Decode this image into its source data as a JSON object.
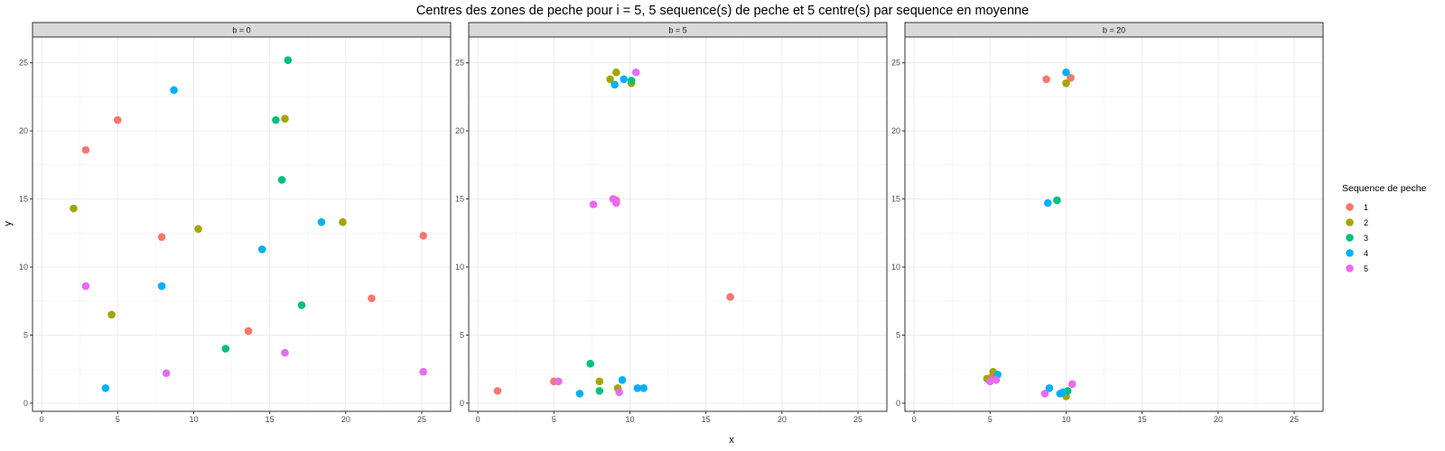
{
  "chart_data": {
    "type": "scatter",
    "title": "Centres des zones de peche pour i = 5, 5 sequence(s) de peche et 5 centre(s) par sequence en moyenne",
    "xlabel": "x",
    "ylabel": "y",
    "xlim": [
      -0.6,
      26.9
    ],
    "ylim": [
      -0.6,
      26.9
    ],
    "x_ticks": [
      0,
      5,
      10,
      15,
      20,
      25
    ],
    "y_ticks": [
      0,
      5,
      10,
      15,
      20,
      25
    ],
    "grid": true,
    "legend": {
      "title": "Sequence de peche",
      "position": "right",
      "entries": [
        {
          "label": "1",
          "color": "#F8766D"
        },
        {
          "label": "2",
          "color": "#A3A500"
        },
        {
          "label": "3",
          "color": "#00BF7D"
        },
        {
          "label": "4",
          "color": "#00B0F6"
        },
        {
          "label": "5",
          "color": "#E76BF3"
        }
      ]
    },
    "panels": [
      {
        "label": "b = 0",
        "series": [
          {
            "name": "1",
            "points": [
              [
                2.9,
                18.6
              ],
              [
                5.0,
                20.8
              ],
              [
                7.9,
                12.2
              ],
              [
                13.6,
                5.3
              ],
              [
                21.7,
                7.7
              ],
              [
                25.1,
                12.3
              ]
            ]
          },
          {
            "name": "2",
            "points": [
              [
                2.1,
                14.3
              ],
              [
                4.6,
                6.5
              ],
              [
                10.3,
                12.8
              ],
              [
                16.0,
                20.9
              ],
              [
                19.8,
                13.3
              ]
            ]
          },
          {
            "name": "3",
            "points": [
              [
                12.1,
                4.0
              ],
              [
                15.4,
                20.8
              ],
              [
                15.8,
                16.4
              ],
              [
                16.2,
                25.2
              ],
              [
                17.1,
                7.2
              ]
            ]
          },
          {
            "name": "4",
            "points": [
              [
                4.2,
                1.1
              ],
              [
                7.9,
                8.6
              ],
              [
                8.7,
                23.0
              ],
              [
                14.5,
                11.3
              ],
              [
                18.4,
                13.3
              ]
            ]
          },
          {
            "name": "5",
            "points": [
              [
                2.9,
                8.6
              ],
              [
                8.2,
                2.2
              ],
              [
                16.0,
                3.7
              ],
              [
                25.1,
                2.3
              ]
            ]
          }
        ]
      },
      {
        "label": "b = 5",
        "series": [
          {
            "name": "1",
            "points": [
              [
                1.3,
                0.9
              ],
              [
                5.0,
                1.6
              ],
              [
                9.1,
                14.9
              ],
              [
                16.6,
                7.8
              ]
            ]
          },
          {
            "name": "2",
            "points": [
              [
                8.0,
                1.6
              ],
              [
                8.7,
                23.8
              ],
              [
                9.1,
                24.3
              ],
              [
                9.2,
                1.1
              ],
              [
                10.1,
                23.5
              ]
            ]
          },
          {
            "name": "3",
            "points": [
              [
                7.4,
                2.9
              ],
              [
                8.0,
                0.9
              ],
              [
                10.1,
                23.7
              ]
            ]
          },
          {
            "name": "4",
            "points": [
              [
                6.7,
                0.7
              ],
              [
                9.0,
                23.4
              ],
              [
                9.5,
                1.7
              ],
              [
                9.6,
                23.8
              ],
              [
                10.5,
                1.1
              ],
              [
                10.9,
                1.1
              ]
            ]
          },
          {
            "name": "5",
            "points": [
              [
                5.3,
                1.6
              ],
              [
                7.6,
                14.6
              ],
              [
                8.9,
                15.0
              ],
              [
                9.1,
                14.7
              ],
              [
                9.3,
                0.8
              ],
              [
                10.4,
                24.3
              ]
            ]
          }
        ]
      },
      {
        "label": "b = 20",
        "series": [
          {
            "name": "1",
            "points": [
              [
                8.7,
                23.8
              ],
              [
                10.3,
                23.9
              ],
              [
                5.1,
                1.9
              ]
            ]
          },
          {
            "name": "2",
            "points": [
              [
                4.8,
                1.8
              ],
              [
                5.2,
                2.3
              ],
              [
                10.0,
                23.5
              ],
              [
                10.0,
                0.5
              ]
            ]
          },
          {
            "name": "3",
            "points": [
              [
                9.4,
                14.9
              ],
              [
                10.1,
                0.9
              ]
            ]
          },
          {
            "name": "4",
            "points": [
              [
                8.8,
                14.7
              ],
              [
                10.0,
                24.3
              ],
              [
                5.5,
                2.1
              ],
              [
                8.9,
                1.1
              ],
              [
                9.6,
                0.7
              ],
              [
                9.8,
                0.8
              ]
            ]
          },
          {
            "name": "5",
            "points": [
              [
                5.0,
                1.6
              ],
              [
                5.4,
                1.7
              ],
              [
                8.6,
                0.7
              ],
              [
                10.4,
                1.4
              ]
            ]
          }
        ]
      }
    ]
  }
}
